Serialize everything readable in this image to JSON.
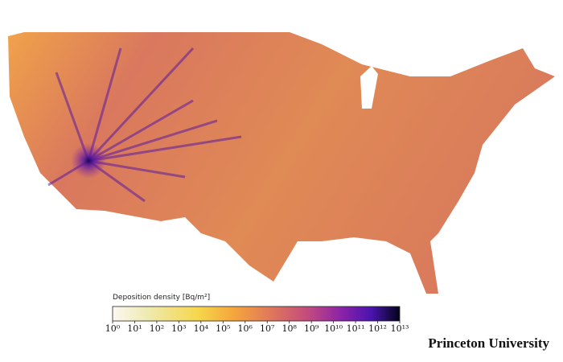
{
  "colorbar": {
    "title": "Deposition density [Bq/m²]",
    "log_scale": true,
    "range": [
      1,
      10000000000000
    ],
    "ticks": [
      {
        "value": 1,
        "label": "10⁰"
      },
      {
        "value": 10,
        "label": "10¹"
      },
      {
        "value": 100,
        "label": "10²"
      },
      {
        "value": 1000,
        "label": "10³"
      },
      {
        "value": 10000,
        "label": "10⁴"
      },
      {
        "value": 100000,
        "label": "10⁵"
      },
      {
        "value": 1000000,
        "label": "10⁶"
      },
      {
        "value": 10000000,
        "label": "10⁷"
      },
      {
        "value": 100000000,
        "label": "10⁸"
      },
      {
        "value": 1000000000,
        "label": "10⁹"
      },
      {
        "value": 10000000000,
        "label": "10¹⁰"
      },
      {
        "value": 100000000000,
        "label": "10¹¹"
      },
      {
        "value": 1000000000000,
        "label": "10¹²"
      },
      {
        "value": 10000000000000,
        "label": "10¹³"
      }
    ]
  },
  "credit": "Princeton University"
}
